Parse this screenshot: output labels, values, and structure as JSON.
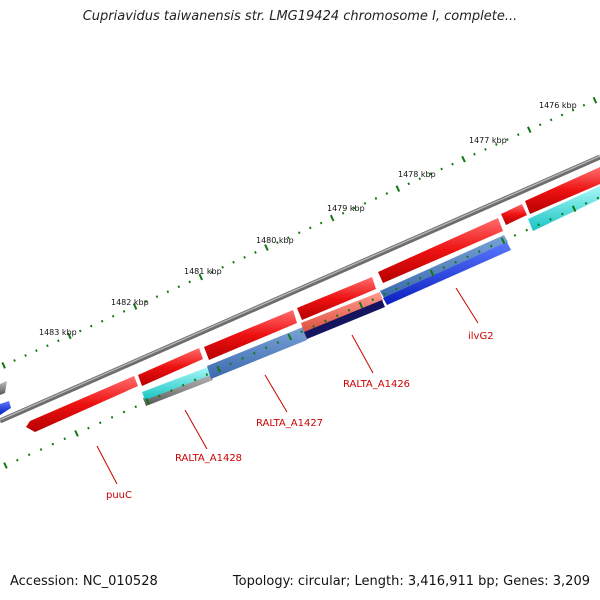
{
  "title": "Cupriavidus taiwanensis str. LMG19424 chromosome I, complete...",
  "accession": "Accession: NC_010528",
  "topology": "Topology: circular; Length: 3,416,911 bp; Genes: 3,209",
  "kbp_labels": [
    "1476 kbp",
    "1477 kbp",
    "1478 kbp",
    "1479 kbp",
    "1480 kbp",
    "1481 kbp",
    "1482 kbp",
    "1483 kbp"
  ],
  "gene_labels": [
    {
      "label": "ilvG2"
    },
    {
      "label": "RALTA_A1426"
    },
    {
      "label": "RALTA_A1427"
    },
    {
      "label": "RALTA_A1428"
    },
    {
      "label": "puuC"
    }
  ],
  "colors": {
    "cds": "#ee1111",
    "gene_label": "#cc0000",
    "tick": "#117711",
    "backbone": "#777777",
    "blue": "#1133dd",
    "steel": "#4477bb",
    "cyan": "#22d3d3",
    "salmon": "#ee6655",
    "navy": "#111177"
  }
}
